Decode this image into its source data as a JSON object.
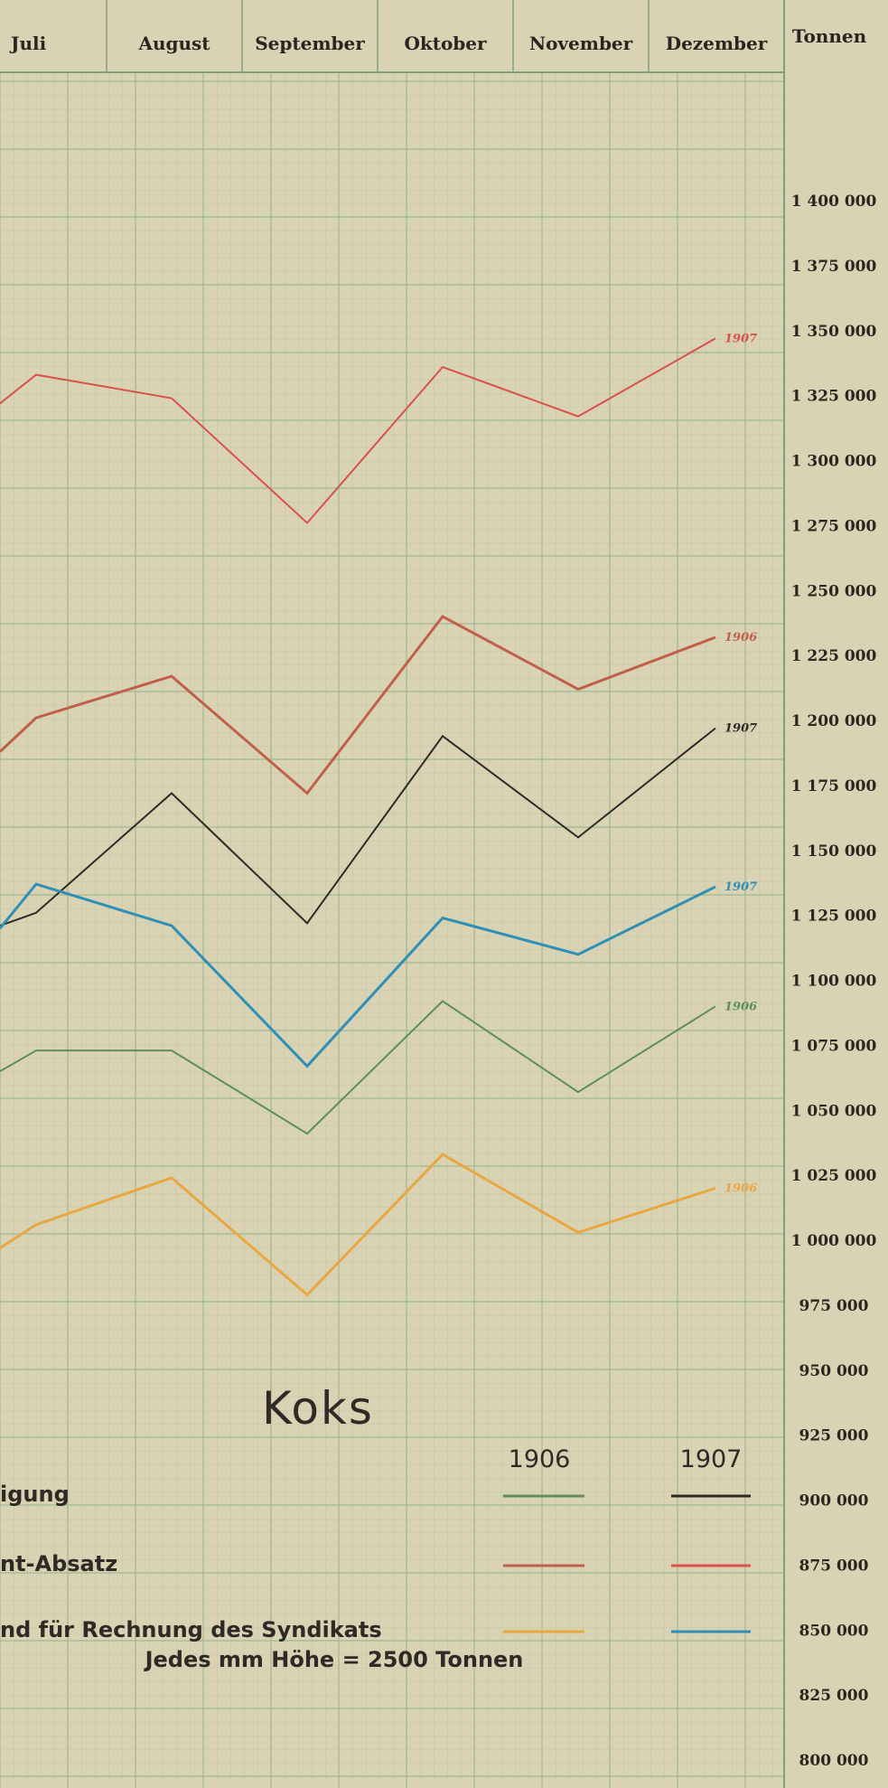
{
  "chart_data": {
    "type": "line",
    "title": "Koks",
    "y_unit_label": "Tonnen",
    "categories": [
      "Juli",
      "August",
      "September",
      "Oktober",
      "November",
      "Dezember"
    ],
    "ylim": [
      800000,
      1425000
    ],
    "y_ticks": [
      "1 400 000",
      "1 375 000",
      "1 350 000",
      "1 325 000",
      "1 300 000",
      "1 275 000",
      "1 250 000",
      "1 225 000",
      "1 200 000",
      "1 175 000",
      "1 150 000",
      "1 125 000",
      "1 100 000",
      "1 075 000",
      "1 050 000",
      "1 025 000",
      "1 000 000",
      "975 000",
      "950 000",
      "925 000",
      "900 000",
      "875 000",
      "850 000",
      "825 000",
      "800 000"
    ],
    "y_tick_values": [
      1400000,
      1375000,
      1350000,
      1325000,
      1300000,
      1275000,
      1250000,
      1225000,
      1200000,
      1175000,
      1150000,
      1125000,
      1100000,
      1075000,
      1050000,
      1025000,
      1000000,
      975000,
      950000,
      925000,
      900000,
      875000,
      850000,
      825000,
      800000
    ],
    "series": [
      {
        "name": "1907",
        "color": "#d9524a",
        "stroke": 2,
        "values": [
          1333000,
          1324000,
          1276000,
          1336000,
          1317000,
          1347000
        ],
        "start_value": 1322000,
        "label": "1907"
      },
      {
        "name": "1906",
        "color": "#c0604a",
        "stroke": 3,
        "values": [
          1201000,
          1217000,
          1172000,
          1240000,
          1212000,
          1232000
        ],
        "start_value": 1188000,
        "label": "1906"
      },
      {
        "name": "1907",
        "color": "#2e2a28",
        "stroke": 2,
        "values": [
          1126000,
          1172000,
          1122000,
          1194000,
          1155000,
          1197000
        ],
        "start_value": 1121000,
        "label": "1907"
      },
      {
        "name": "1907",
        "color": "#2f8fb6",
        "stroke": 3,
        "values": [
          1137000,
          1121000,
          1067000,
          1124000,
          1110000,
          1136000
        ],
        "start_value": 1120000,
        "label": "1907"
      },
      {
        "name": "1906",
        "color": "#5e8f5a",
        "stroke": 2,
        "values": [
          1073000,
          1073000,
          1041000,
          1092000,
          1057000,
          1090000
        ],
        "start_value": 1065000,
        "label": "1906"
      },
      {
        "name": "1906",
        "color": "#e9a741",
        "stroke": 3,
        "values": [
          1006000,
          1024000,
          979000,
          1033000,
          1003000,
          1020000
        ],
        "start_value": 997000,
        "label": "1906"
      }
    ]
  },
  "legend": {
    "col_1906": "1906",
    "col_1907": "1907",
    "scale_note": "Jedes mm Höhe = 2500 Tonnen",
    "rows": [
      {
        "label": "igung",
        "color_1906": "#5e8f5a",
        "color_1907": "#2e2a28"
      },
      {
        "label": "nt-Absatz",
        "color_1906": "#c0604a",
        "color_1907": "#d9524a"
      },
      {
        "label": "nd für Rechnung des Syndikats",
        "color_1906": "#e9a741",
        "color_1907": "#2f8fb6"
      }
    ]
  }
}
